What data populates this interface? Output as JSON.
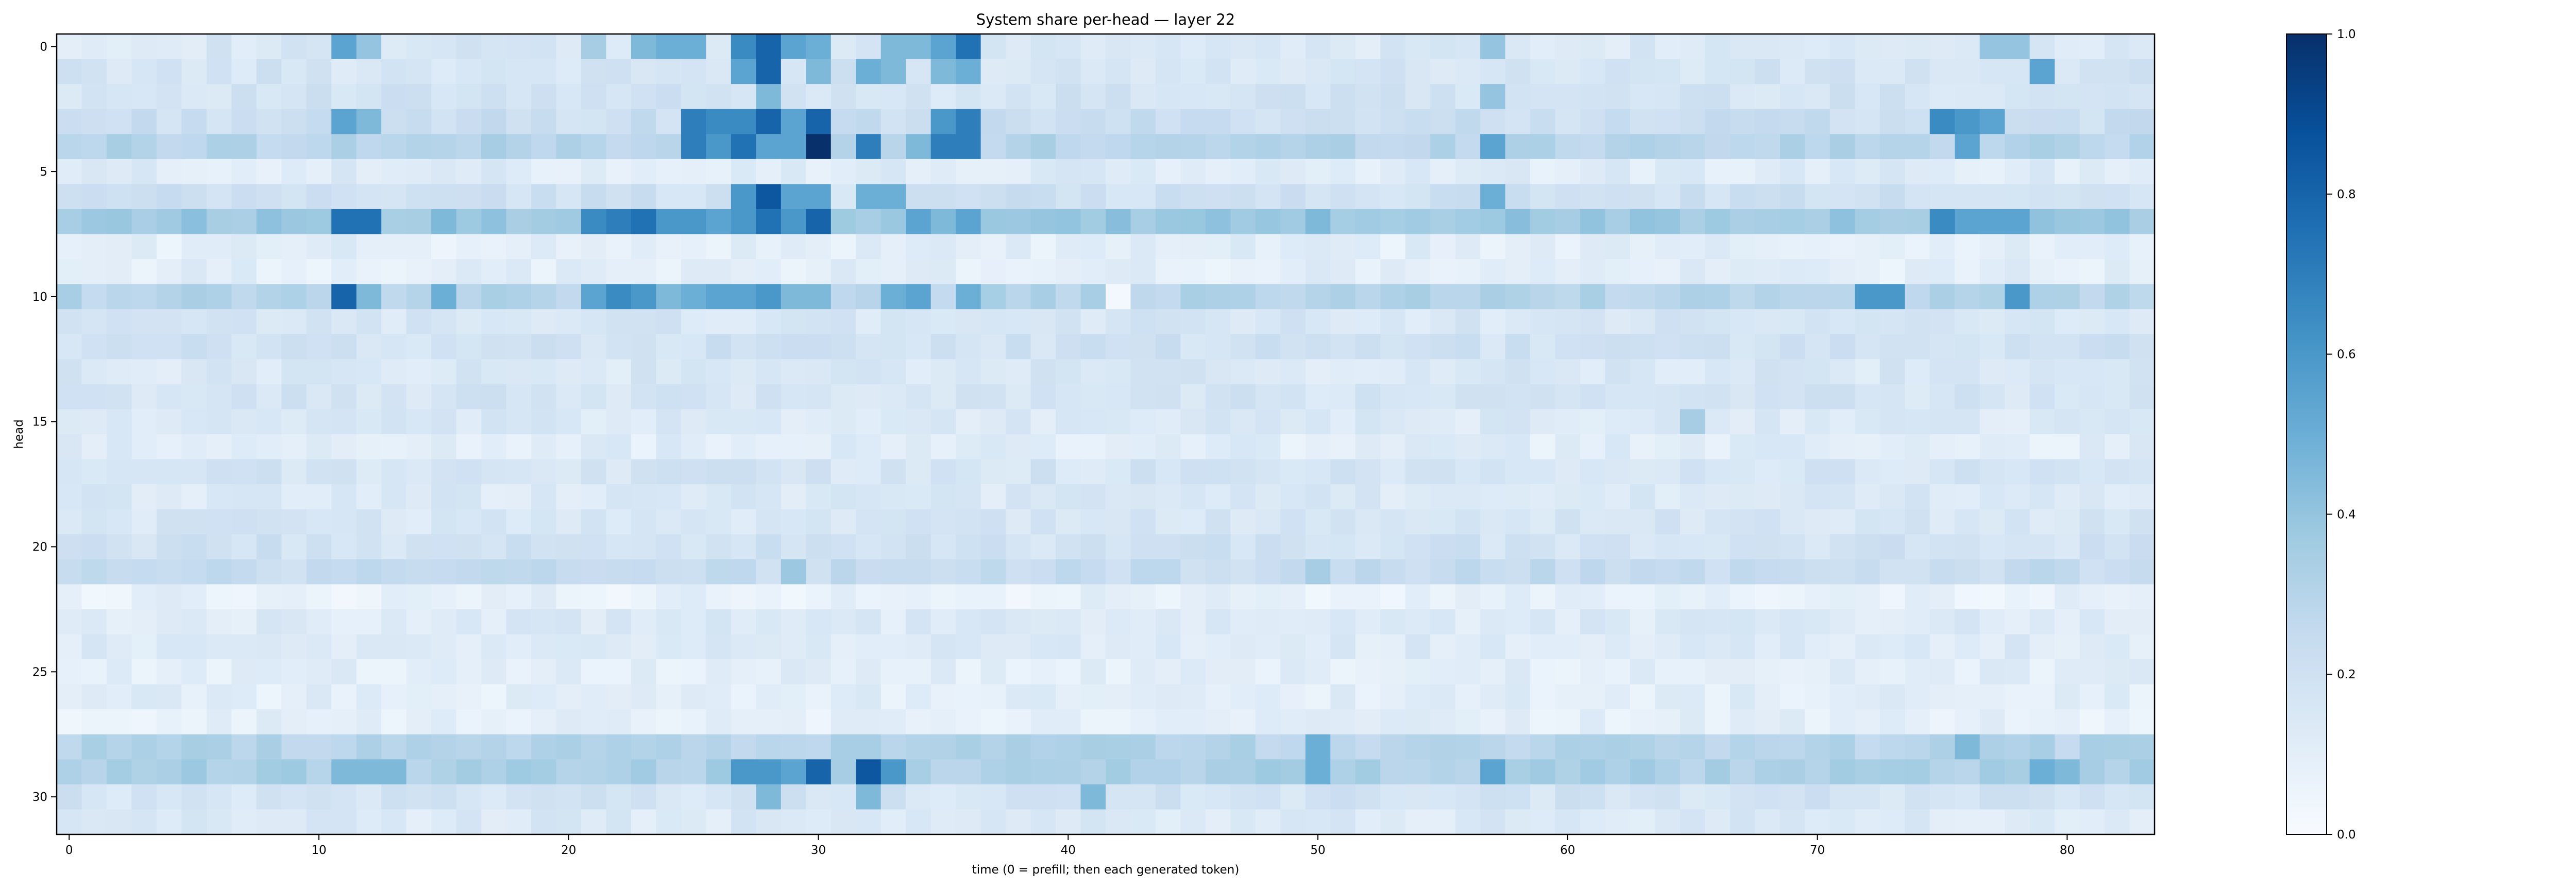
{
  "chart_data": {
    "type": "heatmap",
    "title": "System share per-head — layer 22",
    "xlabel": "time (0 = prefill; then each generated token)",
    "ylabel": "head",
    "n_cols": 84,
    "n_rows": 32,
    "x_ticks": [
      0,
      10,
      20,
      30,
      40,
      50,
      60,
      70,
      80
    ],
    "y_ticks": [
      0,
      5,
      10,
      15,
      20,
      25,
      30
    ],
    "colorbar": {
      "min": 0.0,
      "max": 1.0,
      "ticks": [
        "0.0",
        "0.2",
        "0.4",
        "0.6",
        "0.8",
        "1.0"
      ]
    },
    "colormap": "Blues",
    "colors": {
      "low": "#f7fbff",
      "high": "#08306b"
    },
    "row_base": [
      0.15,
      0.17,
      0.18,
      0.22,
      0.3,
      0.12,
      0.2,
      0.38,
      0.1,
      0.1,
      0.3,
      0.16,
      0.19,
      0.15,
      0.17,
      0.14,
      0.11,
      0.17,
      0.14,
      0.16,
      0.19,
      0.24,
      0.08,
      0.13,
      0.13,
      0.1,
      0.1,
      0.09,
      0.3,
      0.33,
      0.18,
      0.14
    ],
    "highlights": [
      {
        "row": 0,
        "col": 11,
        "value": 0.55
      },
      {
        "row": 0,
        "col": 12,
        "value": 0.4
      },
      {
        "row": 0,
        "col": 21,
        "value": 0.35
      },
      {
        "row": 0,
        "col": 23,
        "value": 0.45
      },
      {
        "row": 0,
        "col": 24,
        "value": 0.5
      },
      {
        "row": 0,
        "col": 25,
        "value": 0.5
      },
      {
        "row": 0,
        "col": 27,
        "value": 0.65
      },
      {
        "row": 0,
        "col": 28,
        "value": 0.8
      },
      {
        "row": 0,
        "col": 29,
        "value": 0.55
      },
      {
        "row": 0,
        "col": 30,
        "value": 0.5
      },
      {
        "row": 0,
        "col": 33,
        "value": 0.45
      },
      {
        "row": 0,
        "col": 34,
        "value": 0.45
      },
      {
        "row": 0,
        "col": 35,
        "value": 0.55
      },
      {
        "row": 0,
        "col": 36,
        "value": 0.75
      },
      {
        "row": 0,
        "col": 57,
        "value": 0.4
      },
      {
        "row": 0,
        "col": 77,
        "value": 0.4
      },
      {
        "row": 0,
        "col": 78,
        "value": 0.4
      },
      {
        "row": 1,
        "col": 27,
        "value": 0.55
      },
      {
        "row": 1,
        "col": 28,
        "value": 0.8
      },
      {
        "row": 1,
        "col": 30,
        "value": 0.45
      },
      {
        "row": 1,
        "col": 32,
        "value": 0.5
      },
      {
        "row": 1,
        "col": 33,
        "value": 0.45
      },
      {
        "row": 1,
        "col": 35,
        "value": 0.45
      },
      {
        "row": 1,
        "col": 36,
        "value": 0.5
      },
      {
        "row": 1,
        "col": 79,
        "value": 0.55
      },
      {
        "row": 2,
        "col": 28,
        "value": 0.45
      },
      {
        "row": 2,
        "col": 57,
        "value": 0.4
      },
      {
        "row": 3,
        "col": 11,
        "value": 0.55
      },
      {
        "row": 3,
        "col": 12,
        "value": 0.45
      },
      {
        "row": 3,
        "col": 25,
        "value": 0.7
      },
      {
        "row": 3,
        "col": 26,
        "value": 0.65
      },
      {
        "row": 3,
        "col": 27,
        "value": 0.65
      },
      {
        "row": 3,
        "col": 28,
        "value": 0.8
      },
      {
        "row": 3,
        "col": 29,
        "value": 0.55
      },
      {
        "row": 3,
        "col": 30,
        "value": 0.8
      },
      {
        "row": 3,
        "col": 35,
        "value": 0.6
      },
      {
        "row": 3,
        "col": 36,
        "value": 0.7
      },
      {
        "row": 3,
        "col": 75,
        "value": 0.65
      },
      {
        "row": 3,
        "col": 76,
        "value": 0.6
      },
      {
        "row": 3,
        "col": 77,
        "value": 0.55
      },
      {
        "row": 4,
        "col": 25,
        "value": 0.7
      },
      {
        "row": 4,
        "col": 26,
        "value": 0.6
      },
      {
        "row": 4,
        "col": 27,
        "value": 0.75
      },
      {
        "row": 4,
        "col": 28,
        "value": 0.55
      },
      {
        "row": 4,
        "col": 29,
        "value": 0.55
      },
      {
        "row": 4,
        "col": 30,
        "value": 1.0
      },
      {
        "row": 4,
        "col": 32,
        "value": 0.7
      },
      {
        "row": 4,
        "col": 34,
        "value": 0.45
      },
      {
        "row": 4,
        "col": 35,
        "value": 0.7
      },
      {
        "row": 4,
        "col": 36,
        "value": 0.7
      },
      {
        "row": 4,
        "col": 57,
        "value": 0.55
      },
      {
        "row": 4,
        "col": 76,
        "value": 0.55
      },
      {
        "row": 6,
        "col": 27,
        "value": 0.6
      },
      {
        "row": 6,
        "col": 28,
        "value": 0.85
      },
      {
        "row": 6,
        "col": 29,
        "value": 0.55
      },
      {
        "row": 6,
        "col": 30,
        "value": 0.55
      },
      {
        "row": 6,
        "col": 32,
        "value": 0.5
      },
      {
        "row": 6,
        "col": 33,
        "value": 0.5
      },
      {
        "row": 6,
        "col": 57,
        "value": 0.5
      },
      {
        "row": 7,
        "col": 11,
        "value": 0.75
      },
      {
        "row": 7,
        "col": 12,
        "value": 0.75
      },
      {
        "row": 7,
        "col": 15,
        "value": 0.45
      },
      {
        "row": 7,
        "col": 21,
        "value": 0.65
      },
      {
        "row": 7,
        "col": 22,
        "value": 0.7
      },
      {
        "row": 7,
        "col": 23,
        "value": 0.75
      },
      {
        "row": 7,
        "col": 24,
        "value": 0.6
      },
      {
        "row": 7,
        "col": 25,
        "value": 0.6
      },
      {
        "row": 7,
        "col": 26,
        "value": 0.55
      },
      {
        "row": 7,
        "col": 27,
        "value": 0.6
      },
      {
        "row": 7,
        "col": 28,
        "value": 0.75
      },
      {
        "row": 7,
        "col": 29,
        "value": 0.6
      },
      {
        "row": 7,
        "col": 30,
        "value": 0.8
      },
      {
        "row": 7,
        "col": 34,
        "value": 0.55
      },
      {
        "row": 7,
        "col": 35,
        "value": 0.45
      },
      {
        "row": 7,
        "col": 36,
        "value": 0.55
      },
      {
        "row": 7,
        "col": 50,
        "value": 0.45
      },
      {
        "row": 7,
        "col": 75,
        "value": 0.65
      },
      {
        "row": 7,
        "col": 76,
        "value": 0.55
      },
      {
        "row": 7,
        "col": 77,
        "value": 0.55
      },
      {
        "row": 7,
        "col": 78,
        "value": 0.55
      },
      {
        "row": 10,
        "col": 11,
        "value": 0.8
      },
      {
        "row": 10,
        "col": 12,
        "value": 0.45
      },
      {
        "row": 10,
        "col": 15,
        "value": 0.5
      },
      {
        "row": 10,
        "col": 21,
        "value": 0.55
      },
      {
        "row": 10,
        "col": 22,
        "value": 0.65
      },
      {
        "row": 10,
        "col": 23,
        "value": 0.6
      },
      {
        "row": 10,
        "col": 24,
        "value": 0.45
      },
      {
        "row": 10,
        "col": 25,
        "value": 0.5
      },
      {
        "row": 10,
        "col": 26,
        "value": 0.55
      },
      {
        "row": 10,
        "col": 27,
        "value": 0.55
      },
      {
        "row": 10,
        "col": 28,
        "value": 0.6
      },
      {
        "row": 10,
        "col": 29,
        "value": 0.45
      },
      {
        "row": 10,
        "col": 30,
        "value": 0.45
      },
      {
        "row": 10,
        "col": 33,
        "value": 0.5
      },
      {
        "row": 10,
        "col": 34,
        "value": 0.55
      },
      {
        "row": 10,
        "col": 36,
        "value": 0.5
      },
      {
        "row": 10,
        "col": 42,
        "value": 0.02
      },
      {
        "row": 10,
        "col": 72,
        "value": 0.6
      },
      {
        "row": 10,
        "col": 73,
        "value": 0.6
      },
      {
        "row": 10,
        "col": 78,
        "value": 0.6
      },
      {
        "row": 15,
        "col": 65,
        "value": 0.35
      },
      {
        "row": 21,
        "col": 29,
        "value": 0.38
      },
      {
        "row": 21,
        "col": 50,
        "value": 0.35
      },
      {
        "row": 28,
        "col": 50,
        "value": 0.5
      },
      {
        "row": 28,
        "col": 76,
        "value": 0.45
      },
      {
        "row": 29,
        "col": 11,
        "value": 0.45
      },
      {
        "row": 29,
        "col": 12,
        "value": 0.45
      },
      {
        "row": 29,
        "col": 13,
        "value": 0.45
      },
      {
        "row": 29,
        "col": 27,
        "value": 0.6
      },
      {
        "row": 29,
        "col": 28,
        "value": 0.6
      },
      {
        "row": 29,
        "col": 29,
        "value": 0.55
      },
      {
        "row": 29,
        "col": 30,
        "value": 0.8
      },
      {
        "row": 29,
        "col": 32,
        "value": 0.85
      },
      {
        "row": 29,
        "col": 33,
        "value": 0.6
      },
      {
        "row": 29,
        "col": 50,
        "value": 0.5
      },
      {
        "row": 29,
        "col": 57,
        "value": 0.55
      },
      {
        "row": 29,
        "col": 79,
        "value": 0.5
      },
      {
        "row": 29,
        "col": 80,
        "value": 0.45
      },
      {
        "row": 30,
        "col": 28,
        "value": 0.45
      },
      {
        "row": 30,
        "col": 32,
        "value": 0.45
      },
      {
        "row": 30,
        "col": 41,
        "value": 0.45
      }
    ]
  }
}
